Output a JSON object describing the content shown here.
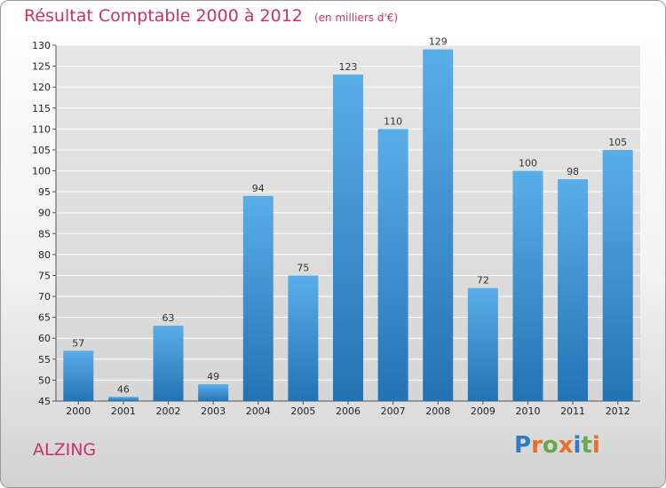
{
  "header": {
    "title": "Résultat Comptable 2000 à 2012",
    "unit": "(en milliers d'€)"
  },
  "footer": {
    "commune": "ALZING",
    "logo": "Proxiti"
  },
  "colors": {
    "title": "#c8326c",
    "bar_top": "#5aaee8",
    "bar_bottom": "#2273b4",
    "logo": [
      "#2e7cc4",
      "#e8702a",
      "#6aa84f",
      "#e8702a",
      "#2e7cc4",
      "#6aa84f",
      "#e8702a"
    ]
  },
  "chart_data": {
    "type": "bar",
    "title": "Résultat Comptable 2000 à 2012",
    "categories": [
      "2000",
      "2001",
      "2002",
      "2003",
      "2004",
      "2005",
      "2006",
      "2007",
      "2008",
      "2009",
      "2010",
      "2011",
      "2012"
    ],
    "values": [
      57,
      46,
      63,
      49,
      94,
      75,
      123,
      110,
      129,
      72,
      100,
      98,
      105
    ],
    "ylim": [
      45,
      130
    ],
    "yticks": [
      45,
      50,
      55,
      60,
      65,
      70,
      75,
      80,
      85,
      90,
      95,
      100,
      105,
      110,
      115,
      120,
      125,
      130
    ],
    "grid": true
  }
}
